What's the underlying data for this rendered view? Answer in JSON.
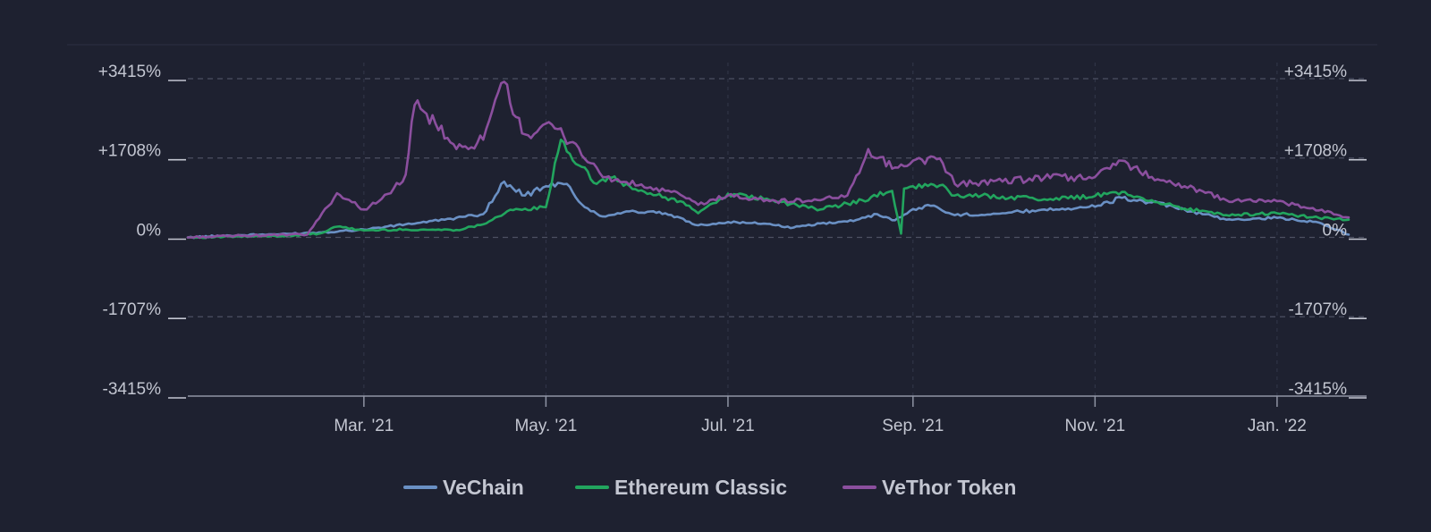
{
  "chart_data": {
    "type": "line",
    "title": "",
    "xlabel": "",
    "ylabel": "",
    "y_unit": "%",
    "ylim": [
      -3415,
      3415
    ],
    "xlim": [
      "2021-01-01",
      "2022-01-31"
    ],
    "grid": true,
    "legend_position": "bottom",
    "y_ticks": [
      {
        "value": 3415,
        "label": "+3415%"
      },
      {
        "value": 1708,
        "label": "+1708%"
      },
      {
        "value": 0,
        "label": "0%"
      },
      {
        "value": -1707,
        "label": "-1707%"
      },
      {
        "value": -3415,
        "label": "-3415%"
      }
    ],
    "x_ticks": [
      {
        "date": "2021-03-01",
        "label": "Mar. '21"
      },
      {
        "date": "2021-05-01",
        "label": "May. '21"
      },
      {
        "date": "2021-07-01",
        "label": "Jul. '21"
      },
      {
        "date": "2021-09-01",
        "label": "Sep. '21"
      },
      {
        "date": "2021-11-01",
        "label": "Nov. '21"
      },
      {
        "date": "2022-01-01",
        "label": "Jan. '22"
      }
    ],
    "series": [
      {
        "name": "VeChain",
        "color": "#6a90c4",
        "points": [
          [
            "2021-01-01",
            0
          ],
          [
            "2021-01-15",
            40
          ],
          [
            "2021-02-01",
            70
          ],
          [
            "2021-02-15",
            110
          ],
          [
            "2021-03-01",
            170
          ],
          [
            "2021-03-15",
            280
          ],
          [
            "2021-03-28",
            380
          ],
          [
            "2021-04-10",
            500
          ],
          [
            "2021-04-17",
            1200
          ],
          [
            "2021-04-20",
            1050
          ],
          [
            "2021-04-24",
            900
          ],
          [
            "2021-05-01",
            1100
          ],
          [
            "2021-05-08",
            1150
          ],
          [
            "2021-05-14",
            650
          ],
          [
            "2021-05-20",
            450
          ],
          [
            "2021-05-28",
            560
          ],
          [
            "2021-06-10",
            520
          ],
          [
            "2021-06-21",
            260
          ],
          [
            "2021-07-01",
            330
          ],
          [
            "2021-07-15",
            290
          ],
          [
            "2021-07-22",
            200
          ],
          [
            "2021-08-01",
            300
          ],
          [
            "2021-08-10",
            340
          ],
          [
            "2021-08-20",
            500
          ],
          [
            "2021-08-26",
            370
          ],
          [
            "2021-09-01",
            610
          ],
          [
            "2021-09-07",
            680
          ],
          [
            "2021-09-15",
            480
          ],
          [
            "2021-10-01",
            520
          ],
          [
            "2021-10-15",
            600
          ],
          [
            "2021-11-01",
            660
          ],
          [
            "2021-11-10",
            850
          ],
          [
            "2021-11-20",
            750
          ],
          [
            "2021-12-01",
            600
          ],
          [
            "2021-12-15",
            380
          ],
          [
            "2022-01-01",
            420
          ],
          [
            "2022-01-15",
            320
          ],
          [
            "2022-01-25",
            60
          ]
        ]
      },
      {
        "name": "Ethereum Classic",
        "color": "#22a55e",
        "points": [
          [
            "2021-01-01",
            0
          ],
          [
            "2021-02-01",
            30
          ],
          [
            "2021-02-14",
            80
          ],
          [
            "2021-02-20",
            230
          ],
          [
            "2021-03-01",
            150
          ],
          [
            "2021-03-15",
            170
          ],
          [
            "2021-04-01",
            160
          ],
          [
            "2021-04-10",
            280
          ],
          [
            "2021-04-18",
            560
          ],
          [
            "2021-05-01",
            650
          ],
          [
            "2021-05-06",
            2100
          ],
          [
            "2021-05-12",
            1550
          ],
          [
            "2021-05-18",
            1150
          ],
          [
            "2021-05-22",
            1300
          ],
          [
            "2021-06-01",
            1000
          ],
          [
            "2021-06-15",
            780
          ],
          [
            "2021-06-21",
            520
          ],
          [
            "2021-07-01",
            940
          ],
          [
            "2021-07-15",
            800
          ],
          [
            "2021-08-01",
            600
          ],
          [
            "2021-08-15",
            800
          ],
          [
            "2021-08-25",
            1000
          ],
          [
            "2021-08-28",
            80
          ],
          [
            "2021-08-29",
            1050
          ],
          [
            "2021-09-01",
            1100
          ],
          [
            "2021-09-10",
            1120
          ],
          [
            "2021-09-15",
            900
          ],
          [
            "2021-10-01",
            880
          ],
          [
            "2021-10-15",
            820
          ],
          [
            "2021-11-01",
            890
          ],
          [
            "2021-11-10",
            980
          ],
          [
            "2021-11-20",
            800
          ],
          [
            "2021-12-01",
            620
          ],
          [
            "2021-12-15",
            480
          ],
          [
            "2022-01-01",
            520
          ],
          [
            "2022-01-15",
            420
          ],
          [
            "2022-01-25",
            380
          ]
        ]
      },
      {
        "name": "VeThor Token",
        "color": "#8b4f9e",
        "points": [
          [
            "2021-01-01",
            0
          ],
          [
            "2021-01-20",
            40
          ],
          [
            "2021-02-10",
            60
          ],
          [
            "2021-02-20",
            950
          ],
          [
            "2021-03-01",
            600
          ],
          [
            "2021-03-10",
            950
          ],
          [
            "2021-03-15",
            1350
          ],
          [
            "2021-03-18",
            2850
          ],
          [
            "2021-03-25",
            2450
          ],
          [
            "2021-04-01",
            1900
          ],
          [
            "2021-04-10",
            2100
          ],
          [
            "2021-04-17",
            3350
          ],
          [
            "2021-04-20",
            2650
          ],
          [
            "2021-04-25",
            2200
          ],
          [
            "2021-05-01",
            2450
          ],
          [
            "2021-05-10",
            2050
          ],
          [
            "2021-05-20",
            1300
          ],
          [
            "2021-06-01",
            1120
          ],
          [
            "2021-06-15",
            920
          ],
          [
            "2021-06-21",
            700
          ],
          [
            "2021-07-01",
            900
          ],
          [
            "2021-07-15",
            780
          ],
          [
            "2021-08-01",
            800
          ],
          [
            "2021-08-10",
            900
          ],
          [
            "2021-08-17",
            1900
          ],
          [
            "2021-08-20",
            1700
          ],
          [
            "2021-08-27",
            1500
          ],
          [
            "2021-09-01",
            1650
          ],
          [
            "2021-09-10",
            1700
          ],
          [
            "2021-09-15",
            1150
          ],
          [
            "2021-10-01",
            1200
          ],
          [
            "2021-10-15",
            1280
          ],
          [
            "2021-11-01",
            1300
          ],
          [
            "2021-11-10",
            1650
          ],
          [
            "2021-11-20",
            1300
          ],
          [
            "2021-12-01",
            1100
          ],
          [
            "2021-12-15",
            800
          ],
          [
            "2022-01-01",
            780
          ],
          [
            "2022-01-15",
            580
          ],
          [
            "2022-01-25",
            430
          ]
        ]
      }
    ]
  }
}
